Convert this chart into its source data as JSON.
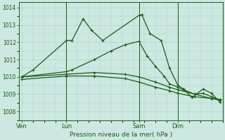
{
  "title": "Pression niveau de la mer( hPa )",
  "bg_color": "#cce8e0",
  "grid_color": "#aad4cc",
  "line_color": "#1a5c1a",
  "ylim": [
    1007.5,
    1014.3
  ],
  "yticks": [
    1008,
    1009,
    1010,
    1011,
    1012,
    1013,
    1014
  ],
  "xtick_labels": [
    "Ven",
    "Lun",
    "Sam",
    "Dim"
  ],
  "xtick_positions": [
    0,
    16,
    42,
    56
  ],
  "xlim": [
    -1,
    72
  ],
  "lines_data": [
    {
      "x": [
        0,
        4,
        16,
        18,
        22,
        25,
        29,
        42,
        43,
        46,
        50,
        53,
        56,
        58,
        61,
        65,
        68,
        71
      ],
      "y": [
        1010.0,
        1010.4,
        1012.1,
        1012.1,
        1013.35,
        1012.7,
        1012.1,
        1013.55,
        1013.6,
        1012.5,
        1012.1,
        1010.5,
        1009.5,
        1009.3,
        1008.8,
        1009.3,
        1009.05,
        1008.55
      ]
    },
    {
      "x": [
        0,
        16,
        18,
        26,
        32,
        37,
        42,
        45,
        48,
        51,
        53,
        56,
        58,
        62,
        65,
        68,
        71
      ],
      "y": [
        1010.0,
        1010.3,
        1010.4,
        1011.0,
        1011.5,
        1011.85,
        1012.05,
        1011.2,
        1010.6,
        1010.05,
        1009.6,
        1009.4,
        1009.25,
        1009.0,
        1009.05,
        1008.85,
        1008.65
      ]
    },
    {
      "x": [
        0,
        16,
        26,
        37,
        42,
        48,
        53,
        56,
        62,
        68,
        71
      ],
      "y": [
        1010.0,
        1010.15,
        1010.25,
        1010.15,
        1010.0,
        1009.7,
        1009.4,
        1009.25,
        1009.0,
        1008.75,
        1008.65
      ]
    },
    {
      "x": [
        0,
        16,
        26,
        37,
        42,
        48,
        53,
        56,
        62,
        68,
        71
      ],
      "y": [
        1009.85,
        1010.05,
        1010.05,
        1009.9,
        1009.7,
        1009.4,
        1009.2,
        1009.05,
        1008.85,
        1008.75,
        1008.7
      ]
    }
  ]
}
